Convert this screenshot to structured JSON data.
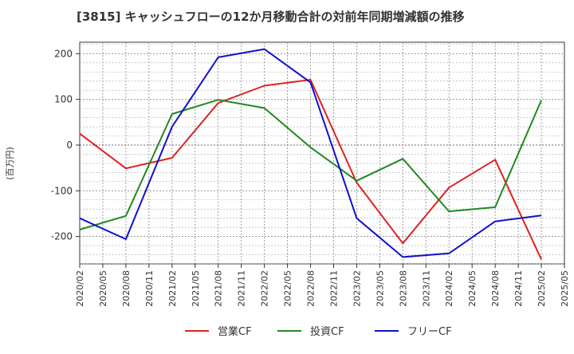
{
  "chart_data": {
    "type": "line",
    "title": "[3815]  キャッシュフローの12か月移動合計の対前年同期増減額の推移",
    "ylabel": "(百万円)",
    "xlabel": "",
    "ylim": [
      -260,
      225
    ],
    "yticks": [
      -200,
      -100,
      0,
      100,
      200
    ],
    "grid": true,
    "legend_position": "bottom",
    "x_labels": [
      "2020/02",
      "2020/05",
      "2020/08",
      "2020/11",
      "2021/02",
      "2021/05",
      "2021/08",
      "2021/11",
      "2022/02",
      "2022/05",
      "2022/08",
      "2022/11",
      "2023/02",
      "2023/05",
      "2023/08",
      "2023/11",
      "2024/02",
      "2024/05",
      "2024/08",
      "2024/11",
      "2025/02",
      "2025/05"
    ],
    "x": [
      "2020/02",
      "2020/08",
      "2021/02",
      "2021/08",
      "2022/02",
      "2022/08",
      "2023/02",
      "2023/08",
      "2024/02",
      "2024/08",
      "2025/02"
    ],
    "series": [
      {
        "name": "営業CF",
        "color": "#dd2222",
        "values": [
          25,
          -51,
          -28,
          92,
          130,
          143,
          -82,
          -215,
          -93,
          -32,
          -250
        ]
      },
      {
        "name": "投資CF",
        "color": "#228822",
        "values": [
          -185,
          -155,
          68,
          99,
          81,
          -5,
          -78,
          -30,
          -145,
          -136,
          98
        ]
      },
      {
        "name": "フリーCF",
        "color": "#1111cc",
        "values": [
          -160,
          -206,
          40,
          192,
          210,
          137,
          -160,
          -245,
          -237,
          -167,
          -154
        ]
      }
    ]
  }
}
